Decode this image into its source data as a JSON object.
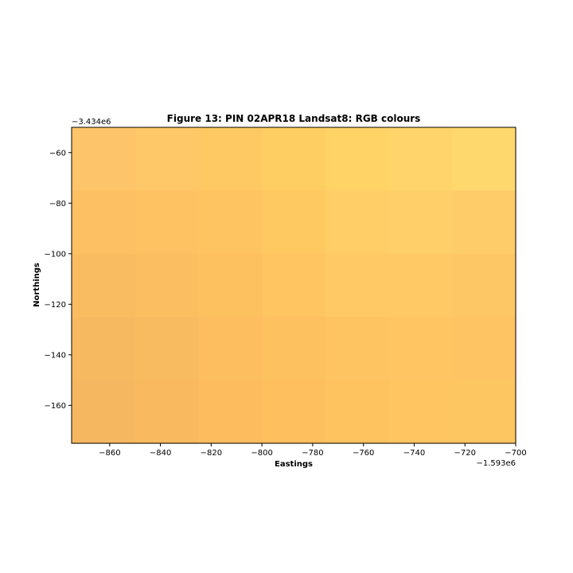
{
  "chart_data": {
    "type": "heatmap",
    "title": "Figure 13: PIN 02APR18  Landsat8: RGB colours",
    "xlabel": "Eastings",
    "ylabel": "Northings",
    "x_offset_label": "−1.593e6",
    "y_offset_label": "−3.434e6",
    "xlim": [
      -875,
      -700
    ],
    "ylim": [
      -175,
      -50
    ],
    "x_ticks": [
      -860,
      -840,
      -820,
      -800,
      -780,
      -760,
      -740,
      -720,
      -700
    ],
    "y_ticks": [
      -60,
      -80,
      -100,
      -120,
      -140,
      -160
    ],
    "x_tick_labels": [
      "−860",
      "−840",
      "−820",
      "−800",
      "−780",
      "−760",
      "−740",
      "−720",
      "−700"
    ],
    "y_tick_labels": [
      "−60",
      "−80",
      "−100",
      "−120",
      "−140",
      "−160"
    ],
    "grid": false,
    "cell_x_edges": [
      -875,
      -850,
      -825,
      -800,
      -775,
      -750,
      -725,
      -700
    ],
    "cell_y_edges": [
      -50,
      -75,
      -100,
      -125,
      -150,
      -175
    ],
    "cell_colors": [
      [
        "#fec469",
        "#fec767",
        "#fec963",
        "#ffce62",
        "#ffd366",
        "#ffd56b",
        "#ffd86d"
      ],
      [
        "#fdc063",
        "#fec263",
        "#fec461",
        "#ffc962",
        "#ffce67",
        "#ffcf69",
        "#fecd6a"
      ],
      [
        "#f9bc61",
        "#fbbe61",
        "#fdc160",
        "#ffc561",
        "#ffc965",
        "#ffc966",
        "#fec766"
      ],
      [
        "#f6b960",
        "#f9bb60",
        "#fcbe5f",
        "#fec160",
        "#fec461",
        "#fec562",
        "#fec463"
      ],
      [
        "#f5b860",
        "#f8b95f",
        "#fdbd5f",
        "#febf5e",
        "#fec25f",
        "#ffc561",
        "#fec661"
      ]
    ]
  }
}
